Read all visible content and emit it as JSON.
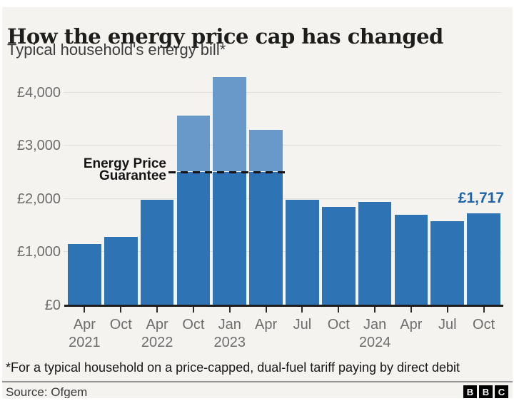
{
  "header": {
    "title": "How the energy price cap has changed",
    "subtitle": "Typical household's energy bill*"
  },
  "chart_data": {
    "type": "bar",
    "title": "How the energy price cap has changed",
    "subtitle": "Typical household's energy bill*",
    "unit": "GBP per year",
    "ylim": [
      0,
      4500
    ],
    "yticks": [
      0,
      1000,
      2000,
      3000,
      4000
    ],
    "ytick_labels": [
      "£0",
      "£1,000",
      "£2,000",
      "£3,000",
      "£4,000"
    ],
    "categories": [
      "Apr 2021",
      "Oct 2021",
      "Apr 2022",
      "Oct 2022",
      "Jan 2023",
      "Apr 2023",
      "Jul 2023",
      "Oct 2023",
      "Jan 2024",
      "Apr 2024",
      "Jul 2024",
      "Oct 2024"
    ],
    "x_tick_labels": [
      "Apr",
      "Oct",
      "Apr",
      "Oct",
      "Jan",
      "Apr",
      "Jul",
      "Oct",
      "Jan",
      "Apr",
      "Jul",
      "Oct"
    ],
    "year_rows": [
      {
        "label": "2021",
        "bar_index": 0
      },
      {
        "label": "2022",
        "bar_index": 2
      },
      {
        "label": "2023",
        "bar_index": 4
      },
      {
        "label": "2024",
        "bar_index": 8
      }
    ],
    "values": [
      1138,
      1277,
      1971,
      3549,
      4279,
      3280,
      1976,
      1834,
      1928,
      1690,
      1568,
      1717
    ],
    "price_guarantee": {
      "value": 2500,
      "label_lines": [
        "Energy Price",
        "Guarantee"
      ],
      "applies_to_bar_indices": [
        3,
        4,
        5
      ]
    },
    "annotation": {
      "text": "£1,717",
      "bar_index": 11
    },
    "grid": true,
    "legend": false,
    "colors": {
      "bar": "#2e74b5",
      "bar_above_guarantee": "#6899c9",
      "annotation": "#1f63a5",
      "background": "#f4f3f0",
      "axis_text": "#6d6d6d"
    }
  },
  "footer": {
    "footnote": "*For a typical household on a price-capped, dual-fuel tariff paying by direct debit",
    "source": "Source: Ofgem",
    "logo_letters": [
      "B",
      "B",
      "C"
    ]
  }
}
